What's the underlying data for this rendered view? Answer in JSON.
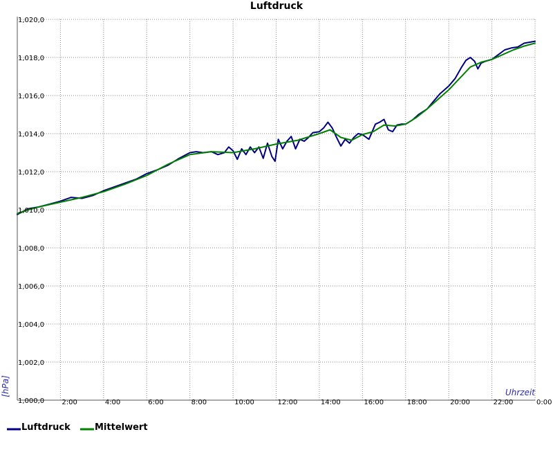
{
  "chart_data": {
    "type": "line",
    "title": "Luftdruck",
    "xlabel": "Uhrzeit",
    "ylabel": "[hPa]",
    "xlim": [
      0,
      24
    ],
    "ylim": [
      1000,
      1020
    ],
    "grid": true,
    "legend_position": "bottom-left",
    "x_ticks": [
      {
        "value": 2,
        "label": "2:00"
      },
      {
        "value": 4,
        "label": "4:00"
      },
      {
        "value": 6,
        "label": "6:00"
      },
      {
        "value": 8,
        "label": "8:00"
      },
      {
        "value": 10,
        "label": "10:00"
      },
      {
        "value": 12,
        "label": "12:00"
      },
      {
        "value": 14,
        "label": "14:00"
      },
      {
        "value": 16,
        "label": "16:00"
      },
      {
        "value": 18,
        "label": "18:00"
      },
      {
        "value": 20,
        "label": "20:00"
      },
      {
        "value": 22,
        "label": "22:00"
      },
      {
        "value": 24,
        "label": "0:00"
      }
    ],
    "y_ticks": [
      {
        "value": 1000,
        "label": "1,000,0"
      },
      {
        "value": 1002,
        "label": "1,002,0"
      },
      {
        "value": 1004,
        "label": "1,004,0"
      },
      {
        "value": 1006,
        "label": "1,006,0"
      },
      {
        "value": 1008,
        "label": "1,008,0"
      },
      {
        "value": 1010,
        "label": "1,010,0"
      },
      {
        "value": 1012,
        "label": "1,012,0"
      },
      {
        "value": 1014,
        "label": "1,014,0"
      },
      {
        "value": 1016,
        "label": "1,016,0"
      },
      {
        "value": 1018,
        "label": "1,018,0"
      },
      {
        "value": 1020,
        "label": "1,020,0"
      }
    ],
    "series": [
      {
        "name": "Luftdruck",
        "color": "#000080",
        "x": [
          0.0,
          0.25,
          0.5,
          0.75,
          1.0,
          1.5,
          2.0,
          2.5,
          3.0,
          3.5,
          4.0,
          4.5,
          5.0,
          5.5,
          6.0,
          6.5,
          7.0,
          7.5,
          8.0,
          8.3,
          8.6,
          9.0,
          9.3,
          9.6,
          9.8,
          10.0,
          10.2,
          10.4,
          10.6,
          10.8,
          11.0,
          11.2,
          11.4,
          11.6,
          11.8,
          11.95,
          12.1,
          12.3,
          12.5,
          12.7,
          12.9,
          13.1,
          13.3,
          13.5,
          13.7,
          14.0,
          14.2,
          14.4,
          14.6,
          14.8,
          15.0,
          15.2,
          15.4,
          15.6,
          15.8,
          16.0,
          16.3,
          16.6,
          16.8,
          17.0,
          17.2,
          17.4,
          17.6,
          17.8,
          18.0,
          18.3,
          18.6,
          19.0,
          19.3,
          19.6,
          20.0,
          20.3,
          20.6,
          20.8,
          21.0,
          21.2,
          21.35,
          21.5,
          21.7,
          22.0,
          22.3,
          22.6,
          22.9,
          23.2,
          23.5,
          23.75,
          24.0
        ],
        "y": [
          1009.75,
          1009.9,
          1010.05,
          1010.1,
          1010.15,
          1010.3,
          1010.45,
          1010.65,
          1010.6,
          1010.75,
          1011.0,
          1011.2,
          1011.4,
          1011.6,
          1011.9,
          1012.1,
          1012.35,
          1012.7,
          1013.0,
          1013.05,
          1013.0,
          1013.05,
          1012.9,
          1013.0,
          1013.3,
          1013.1,
          1012.65,
          1013.2,
          1012.9,
          1013.3,
          1013.0,
          1013.3,
          1012.7,
          1013.5,
          1012.8,
          1012.55,
          1013.7,
          1013.2,
          1013.6,
          1013.85,
          1013.2,
          1013.7,
          1013.6,
          1013.8,
          1014.05,
          1014.1,
          1014.3,
          1014.6,
          1014.3,
          1013.8,
          1013.35,
          1013.7,
          1013.5,
          1013.8,
          1014.0,
          1013.95,
          1013.7,
          1014.5,
          1014.6,
          1014.75,
          1014.2,
          1014.1,
          1014.45,
          1014.5,
          1014.5,
          1014.7,
          1015.0,
          1015.3,
          1015.7,
          1016.1,
          1016.5,
          1016.9,
          1017.5,
          1017.85,
          1018.0,
          1017.8,
          1017.4,
          1017.7,
          1017.8,
          1017.9,
          1018.15,
          1018.4,
          1018.5,
          1018.55,
          1018.75,
          1018.8,
          1018.85
        ]
      },
      {
        "name": "Mittelwert",
        "color": "#008000",
        "x": [
          0.0,
          0.5,
          1.0,
          2.0,
          3.0,
          4.0,
          5.0,
          6.0,
          7.0,
          8.0,
          9.0,
          10.0,
          11.0,
          12.0,
          13.0,
          14.0,
          14.5,
          15.0,
          15.5,
          16.0,
          16.5,
          17.0,
          17.5,
          18.0,
          18.5,
          19.0,
          19.5,
          20.0,
          20.5,
          21.0,
          21.5,
          22.0,
          22.5,
          23.0,
          23.5,
          24.0
        ],
        "y": [
          1009.8,
          1010.0,
          1010.15,
          1010.4,
          1010.65,
          1010.95,
          1011.35,
          1011.8,
          1012.4,
          1012.9,
          1013.05,
          1013.0,
          1013.2,
          1013.45,
          1013.65,
          1014.0,
          1014.2,
          1013.8,
          1013.65,
          1013.95,
          1014.1,
          1014.45,
          1014.4,
          1014.5,
          1014.85,
          1015.3,
          1015.8,
          1016.3,
          1016.9,
          1017.5,
          1017.75,
          1017.9,
          1018.15,
          1018.4,
          1018.6,
          1018.75
        ]
      }
    ]
  }
}
